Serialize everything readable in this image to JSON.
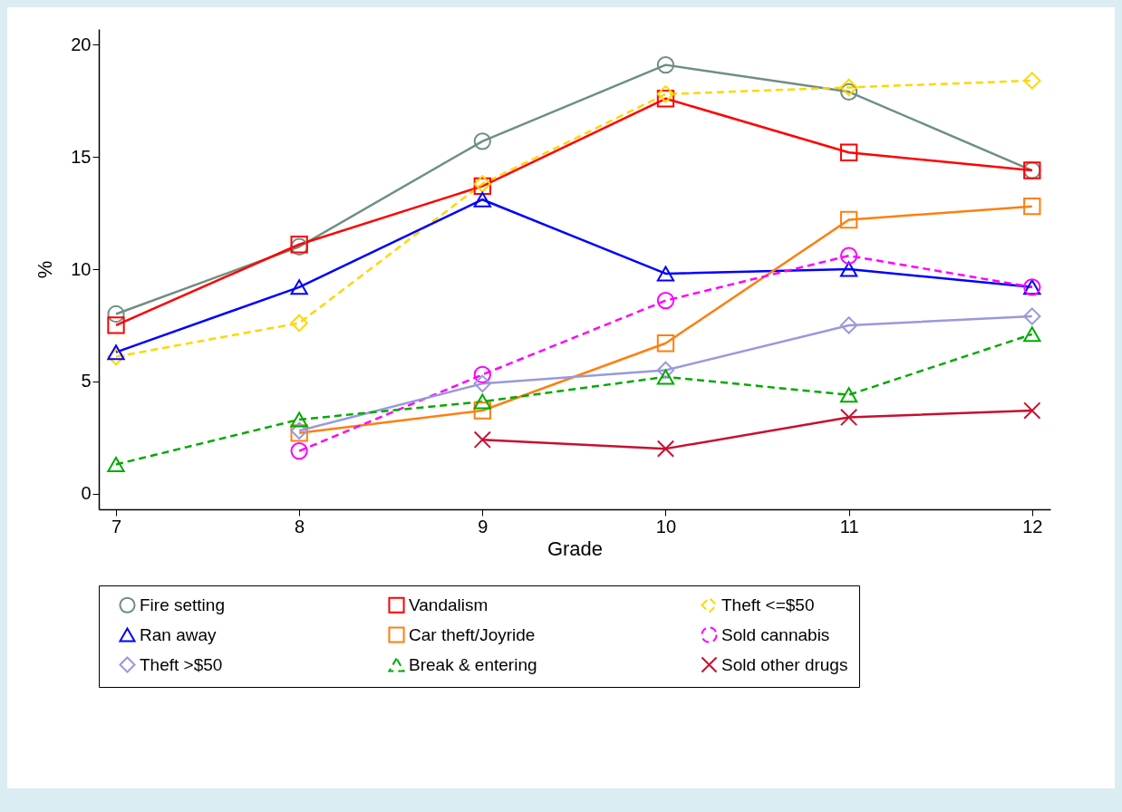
{
  "chart_data": {
    "type": "line",
    "xlabel": "Grade",
    "ylabel": "%",
    "x": [
      7,
      8,
      9,
      10,
      11,
      12
    ],
    "xlim": [
      6.906,
      12.1
    ],
    "xticks": [
      7,
      8,
      9,
      10,
      11,
      12
    ],
    "ylim": [
      -0.7,
      20.7
    ],
    "yticks": [
      0,
      5,
      10,
      15,
      20
    ],
    "grid": false,
    "legend": "bottom",
    "series": [
      {
        "name": "Fire setting",
        "color": "#6e8e84",
        "marker": "circle",
        "line_style": "solid",
        "values": [
          8.0,
          11.0,
          15.7,
          19.1,
          17.9,
          14.4
        ]
      },
      {
        "name": "Vandalism",
        "color": "#ff0000",
        "marker": "square",
        "line_style": "solid",
        "values": [
          7.5,
          11.1,
          13.7,
          17.6,
          15.2,
          14.4
        ]
      },
      {
        "name": "Theft <=$50",
        "color": "#ffd700",
        "marker": "diamond",
        "line_style": "dashed",
        "values": [
          6.1,
          7.6,
          13.8,
          17.8,
          18.1,
          18.4
        ]
      },
      {
        "name": "Ran away",
        "color": "#0000ff",
        "marker": "triangle",
        "line_style": "solid",
        "values": [
          6.3,
          9.2,
          13.1,
          9.8,
          10.0,
          9.2
        ]
      },
      {
        "name": "Car theft/Joyride",
        "color": "#ff7f0e",
        "marker": "square",
        "line_style": "solid",
        "values": [
          null,
          2.7,
          3.7,
          6.7,
          12.2,
          12.8
        ]
      },
      {
        "name": "Sold cannabis",
        "color": "#ff00ff",
        "marker": "circle",
        "line_style": "dashed",
        "values": [
          null,
          1.9,
          5.3,
          8.6,
          10.6,
          9.2
        ]
      },
      {
        "name": "Theft >$50",
        "color": "#9999dd",
        "marker": "diamond",
        "line_style": "solid",
        "values": [
          null,
          2.8,
          4.9,
          5.5,
          7.5,
          7.9
        ]
      },
      {
        "name": "Break & entering",
        "color": "#00aa00",
        "marker": "triangle",
        "line_style": "dashed",
        "values": [
          1.3,
          3.3,
          4.1,
          5.2,
          4.4,
          7.1
        ]
      },
      {
        "name": "Sold other drugs",
        "color": "#c8102e",
        "marker": "cross",
        "line_style": "solid",
        "values": [
          null,
          null,
          2.4,
          2.0,
          3.4,
          3.7
        ]
      }
    ]
  }
}
